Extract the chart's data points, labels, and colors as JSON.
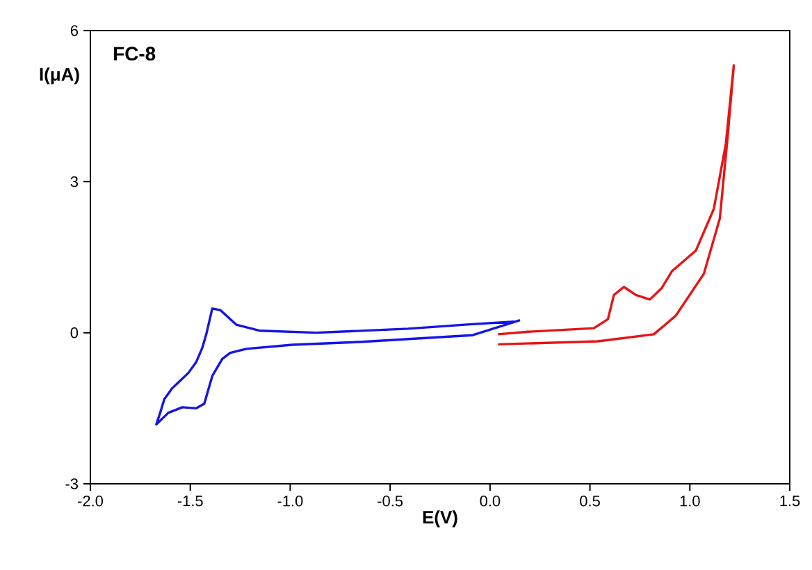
{
  "chart_data": {
    "type": "line",
    "xlabel": "E(V)",
    "ylabel": "I(μA)",
    "annotations": [
      "FC-8"
    ],
    "xlim": [
      -2.0,
      1.5
    ],
    "ylim": [
      -3,
      6
    ],
    "xticks": [
      {
        "value": -2.0,
        "label": "-2.0"
      },
      {
        "value": -1.5,
        "label": "-1.5"
      },
      {
        "value": -1.0,
        "label": "-1.0"
      },
      {
        "value": -0.5,
        "label": "-0.5"
      },
      {
        "value": 0.0,
        "label": "0.0"
      },
      {
        "value": 0.5,
        "label": "0.5"
      },
      {
        "value": 1.0,
        "label": "1.0"
      },
      {
        "value": 1.5,
        "label": "1.5"
      }
    ],
    "yticks": [
      -3,
      0,
      3,
      6
    ],
    "grid": false,
    "line_style": "solid",
    "series": [
      {
        "color": "#1414e6",
        "x": [
          0.15,
          -0.09,
          -0.64,
          -0.99,
          -1.22,
          -1.3,
          -1.34,
          -1.39,
          -1.43,
          -1.47,
          -1.54,
          -1.61,
          -1.67,
          -1.65,
          -1.63,
          -1.59,
          -1.55,
          -1.51,
          -1.47,
          -1.44,
          -1.42,
          -1.39,
          -1.35,
          -1.27,
          -1.15,
          -0.87,
          -0.41,
          -0.09,
          0.12
        ],
        "values": [
          0.25,
          -0.05,
          -0.18,
          -0.24,
          -0.32,
          -0.4,
          -0.52,
          -0.86,
          -1.41,
          -1.5,
          -1.48,
          -1.59,
          -1.82,
          -1.58,
          -1.32,
          -1.1,
          -0.95,
          -0.8,
          -0.58,
          -0.3,
          -0.03,
          0.48,
          0.45,
          0.16,
          0.04,
          0.0,
          0.08,
          0.17,
          0.22
        ]
      },
      {
        "color": "#e61414",
        "x": [
          0.04,
          0.54,
          0.82,
          0.93,
          1.07,
          1.15,
          1.19,
          1.22,
          1.18,
          1.12,
          1.03,
          0.91,
          0.86,
          0.8,
          0.73,
          0.67,
          0.62,
          0.59,
          0.52,
          0.19,
          0.04
        ],
        "values": [
          -0.23,
          -0.17,
          -0.03,
          0.34,
          1.17,
          2.27,
          3.93,
          5.31,
          3.75,
          2.46,
          1.63,
          1.22,
          0.89,
          0.66,
          0.75,
          0.91,
          0.75,
          0.27,
          0.09,
          0.02,
          -0.03
        ]
      }
    ]
  }
}
